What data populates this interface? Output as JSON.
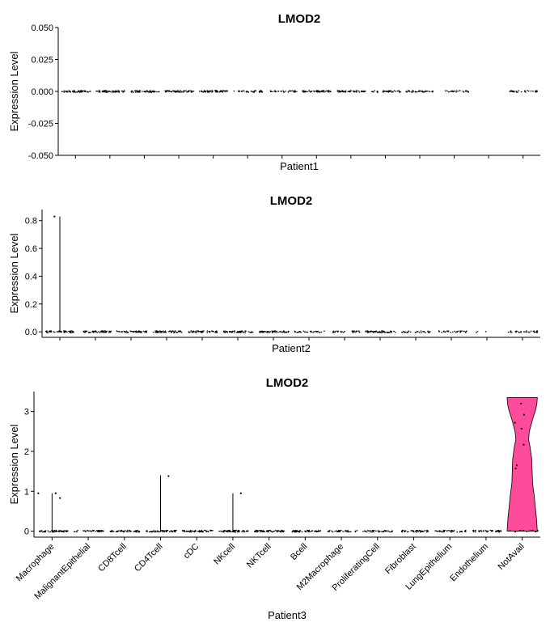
{
  "chart_data": [
    {
      "type": "violin",
      "title": "LMOD2",
      "xlabel": "Patient1",
      "ylabel": "Expression Level",
      "ylim": [
        -0.05,
        0.05
      ],
      "yticks": [
        "-0.050",
        "-0.025",
        "0.000",
        "0.025",
        "0.050"
      ],
      "ytick_values": [
        -0.05,
        -0.025,
        0.0,
        0.025,
        0.05
      ],
      "categories": [
        "Macrophage",
        "MalignantEpithelial",
        "CD8Tcell",
        "CD4Tcell",
        "cDC",
        "NKcell",
        "NKTcell",
        "Bcell",
        "M2Macrophage",
        "ProliferatingCell",
        "Fibroblast",
        "LungEpithelium",
        "Endothelium",
        "NotAvail"
      ],
      "show_x_ticklabels": false,
      "violins": [
        {
          "category": "Macrophage",
          "max": 0.0
        },
        {
          "category": "MalignantEpithelial",
          "max": 0.0
        },
        {
          "category": "CD8Tcell",
          "max": 0.0
        },
        {
          "category": "CD4Tcell",
          "max": 0.0
        },
        {
          "category": "cDC",
          "max": 0.0
        },
        {
          "category": "NKcell",
          "max": 0.0
        },
        {
          "category": "NKTcell",
          "max": 0.0
        },
        {
          "category": "Bcell",
          "max": 0.0
        },
        {
          "category": "M2Macrophage",
          "max": 0.0
        },
        {
          "category": "ProliferatingCell",
          "max": 0.0
        },
        {
          "category": "Fibroblast",
          "max": 0.0
        },
        {
          "category": "LungEpithelium",
          "max": 0.0
        },
        {
          "category": "Endothelium",
          "max": 0.0
        },
        {
          "category": "NotAvail",
          "max": 0.0
        }
      ],
      "zero_dot_density": [
        1.0,
        1.0,
        1.0,
        1.0,
        1.0,
        0.6,
        0.55,
        1.0,
        1.0,
        0.75,
        0.75,
        0.5,
        0.0,
        0.55
      ],
      "points": []
    },
    {
      "type": "violin",
      "title": "LMOD2",
      "xlabel": "Patient2",
      "ylabel": "Expression Level",
      "ylim": [
        -0.04,
        0.88
      ],
      "yticks": [
        "0.0",
        "0.2",
        "0.4",
        "0.6",
        "0.8"
      ],
      "ytick_values": [
        0.0,
        0.2,
        0.4,
        0.6,
        0.8
      ],
      "categories": [
        "Macrophage",
        "MalignantEpithelial",
        "CD8Tcell",
        "CD4Tcell",
        "cDC",
        "NKcell",
        "NKTcell",
        "Bcell",
        "M2Macrophage",
        "ProliferatingCell",
        "Fibroblast",
        "LungEpithelium",
        "Endothelium",
        "NotAvail"
      ],
      "show_x_ticklabels": false,
      "violins": [
        {
          "category": "Macrophage",
          "max": 0.83
        },
        {
          "category": "MalignantEpithelial",
          "max": 0.0
        },
        {
          "category": "CD8Tcell",
          "max": 0.0
        },
        {
          "category": "CD4Tcell",
          "max": 0.0
        },
        {
          "category": "cDC",
          "max": 0.0
        },
        {
          "category": "NKcell",
          "max": 0.0
        },
        {
          "category": "NKTcell",
          "max": 0.0
        },
        {
          "category": "Bcell",
          "max": 0.0
        },
        {
          "category": "M2Macrophage",
          "max": 0.0
        },
        {
          "category": "ProliferatingCell",
          "max": 0.0
        },
        {
          "category": "Fibroblast",
          "max": 0.0
        },
        {
          "category": "LungEpithelium",
          "max": 0.0
        },
        {
          "category": "Endothelium",
          "max": 0.0
        },
        {
          "category": "NotAvail",
          "max": 0.0
        }
      ],
      "zero_dot_density": [
        1.0,
        1.0,
        1.0,
        1.0,
        0.9,
        1.0,
        1.0,
        0.6,
        0.5,
        1.0,
        0.5,
        0.5,
        0.05,
        0.55
      ],
      "points": [
        {
          "category": "Macrophage",
          "y": 0.83,
          "dx": -0.15
        }
      ]
    },
    {
      "type": "violin",
      "title": "LMOD2",
      "xlabel": "Patient3",
      "ylabel": "Expression Level",
      "ylim": [
        -0.15,
        3.5
      ],
      "yticks": [
        "0",
        "1",
        "2",
        "3"
      ],
      "ytick_values": [
        0,
        1,
        2,
        3
      ],
      "categories": [
        "Macrophage",
        "MalignantEpithelial",
        "CD8Tcell",
        "CD4Tcell",
        "cDC",
        "NKcell",
        "NKTcell",
        "Bcell",
        "M2Macrophage",
        "ProliferatingCell",
        "Fibroblast",
        "LungEpithelium",
        "Endothelium",
        "NotAvail"
      ],
      "show_x_ticklabels": true,
      "violins": [
        {
          "category": "Macrophage",
          "max": 0.95
        },
        {
          "category": "MalignantEpithelial",
          "max": 0.0
        },
        {
          "category": "CD8Tcell",
          "max": 0.0
        },
        {
          "category": "CD4Tcell",
          "max": 1.4
        },
        {
          "category": "cDC",
          "max": 0.0
        },
        {
          "category": "NKcell",
          "max": 0.95
        },
        {
          "category": "NKTcell",
          "max": 0.0
        },
        {
          "category": "Bcell",
          "max": 0.0
        },
        {
          "category": "M2Macrophage",
          "max": 0.0
        },
        {
          "category": "ProliferatingCell",
          "max": 0.0
        },
        {
          "category": "Fibroblast",
          "max": 0.0
        },
        {
          "category": "LungEpithelium",
          "max": 0.0
        },
        {
          "category": "Endothelium",
          "max": 0.0
        },
        {
          "category": "NotAvail",
          "max": 3.35,
          "filled": true,
          "color": "#FF4C9A"
        }
      ],
      "zero_dot_density": [
        1.0,
        0.7,
        1.0,
        1.0,
        1.0,
        1.0,
        1.0,
        1.0,
        0.6,
        0.7,
        0.7,
        0.7,
        0.7,
        0.3
      ],
      "points": [
        {
          "category": "Macrophage",
          "y": 0.95,
          "dx": -0.38
        },
        {
          "category": "Macrophage",
          "y": 0.95,
          "dx": 0.1
        },
        {
          "category": "Macrophage",
          "y": 0.83,
          "dx": 0.22
        },
        {
          "category": "CD4Tcell",
          "y": 1.38,
          "dx": 0.22
        },
        {
          "category": "NKcell",
          "y": 0.95,
          "dx": 0.22
        },
        {
          "category": "NotAvail",
          "y": 3.2,
          "dx": -0.03
        },
        {
          "category": "NotAvail",
          "y": 2.92,
          "dx": 0.05
        },
        {
          "category": "NotAvail",
          "y": 2.72,
          "dx": -0.2
        },
        {
          "category": "NotAvail",
          "y": 2.57,
          "dx": -0.02
        },
        {
          "category": "NotAvail",
          "y": 2.17,
          "dx": 0.04
        },
        {
          "category": "NotAvail",
          "y": 1.65,
          "dx": -0.15
        },
        {
          "category": "NotAvail",
          "y": 1.57,
          "dx": -0.18
        }
      ]
    }
  ],
  "notavail_violin_profile": [
    [
      0.0,
      0.38
    ],
    [
      0.3,
      0.36
    ],
    [
      0.6,
      0.33
    ],
    [
      0.9,
      0.3
    ],
    [
      1.2,
      0.26
    ],
    [
      1.5,
      0.25
    ],
    [
      1.8,
      0.24
    ],
    [
      2.1,
      0.2
    ],
    [
      2.3,
      0.16
    ],
    [
      2.5,
      0.18
    ],
    [
      2.8,
      0.26
    ],
    [
      3.05,
      0.34
    ],
    [
      3.2,
      0.37
    ],
    [
      3.35,
      0.38
    ]
  ]
}
